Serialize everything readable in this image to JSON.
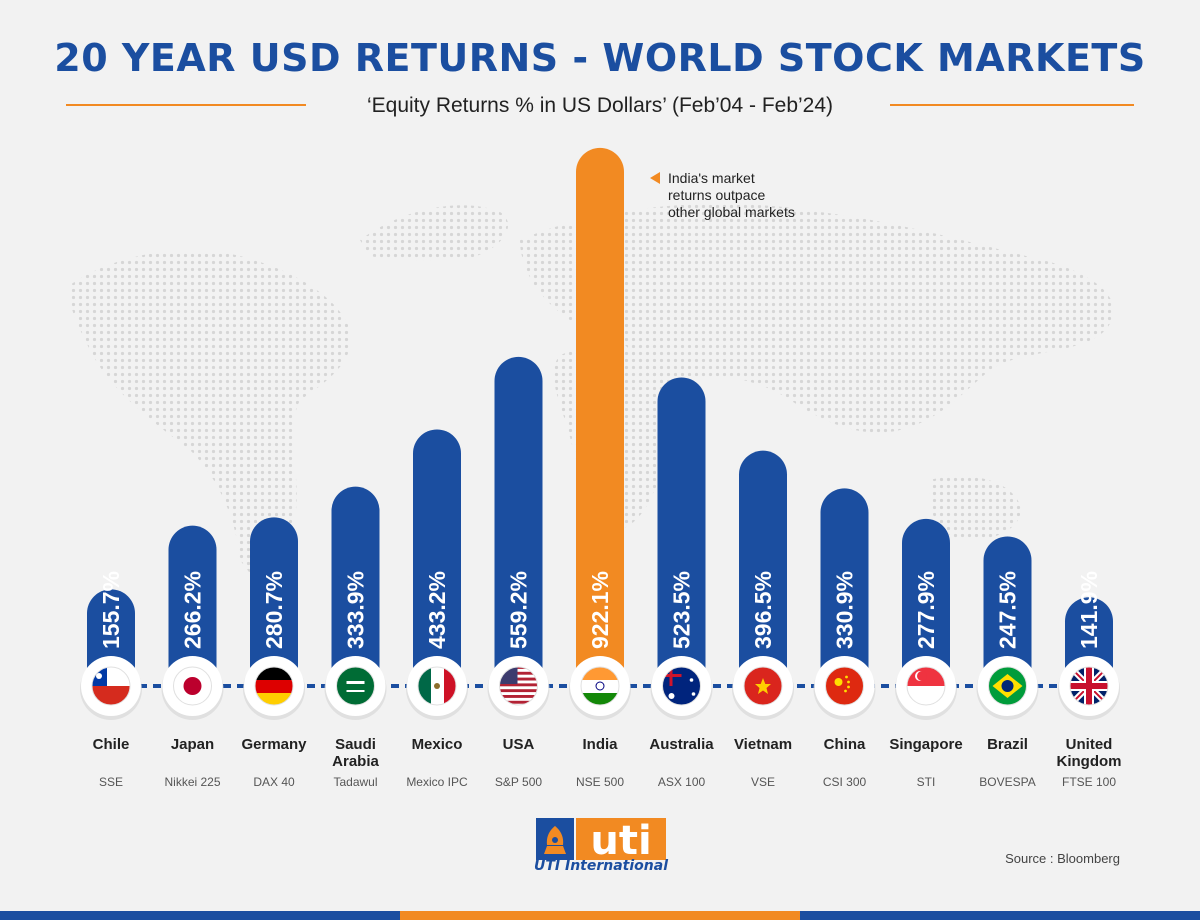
{
  "header": {
    "title": "20 YEAR USD RETURNS - WORLD STOCK MARKETS",
    "subtitle": "‘Equity Returns % in US Dollars’ (Feb’04 - Feb’24)"
  },
  "annotation": "India's market returns outpace other global markets",
  "annotation_lines": [
    "India's market",
    "returns outpace",
    "other global markets"
  ],
  "colors": {
    "bar": "#1b4ea0",
    "highlight": "#f28a22",
    "title": "#1b4ea0"
  },
  "chart_data": {
    "type": "bar",
    "title": "20 YEAR USD RETURNS - WORLD STOCK MARKETS",
    "subtitle": "‘Equity Returns % in US Dollars’ (Feb’04 - Feb’24)",
    "categories": [
      "Chile",
      "Japan",
      "Germany",
      "Saudi Arabia",
      "Mexico",
      "USA",
      "India",
      "Australia",
      "Vietnam",
      "China",
      "Singapore",
      "Brazil",
      "United Kingdom"
    ],
    "category_lines": [
      [
        "Chile"
      ],
      [
        "Japan"
      ],
      [
        "Germany"
      ],
      [
        "Saudi",
        "Arabia"
      ],
      [
        "Mexico"
      ],
      [
        "USA"
      ],
      [
        "India"
      ],
      [
        "Australia"
      ],
      [
        "Vietnam"
      ],
      [
        "China"
      ],
      [
        "Singapore"
      ],
      [
        "Brazil"
      ],
      [
        "United",
        "Kingdom"
      ]
    ],
    "indices": [
      "SSE",
      "Nikkei 225",
      "DAX 40",
      "Tadawul",
      "Mexico IPC",
      "S&P 500",
      "NSE 500",
      "ASX 100",
      "VSE",
      "CSI 300",
      "STI",
      "BOVESPA",
      "FTSE 100"
    ],
    "flag_icons": [
      "chile-flag-icon",
      "japan-flag-icon",
      "germany-flag-icon",
      "saudi-arabia-flag-icon",
      "mexico-flag-icon",
      "usa-flag-icon",
      "india-flag-icon",
      "australia-flag-icon",
      "vietnam-flag-icon",
      "china-flag-icon",
      "singapore-flag-icon",
      "brazil-flag-icon",
      "uk-flag-icon"
    ],
    "values": [
      155.7,
      266.2,
      280.7,
      333.9,
      433.2,
      559.2,
      922.1,
      523.5,
      396.5,
      330.9,
      277.9,
      247.5,
      141.9
    ],
    "value_labels": [
      "155.7%",
      "266.2%",
      "280.7%",
      "333.9%",
      "433.2%",
      "559.2%",
      "922.1%",
      "523.5%",
      "396.5%",
      "330.9%",
      "277.9%",
      "247.5%",
      "141.9%"
    ],
    "highlight": "India",
    "unit": "%"
  },
  "logo": {
    "brand": "uti",
    "name": "UTI International"
  },
  "source": "Source : Bloomberg"
}
